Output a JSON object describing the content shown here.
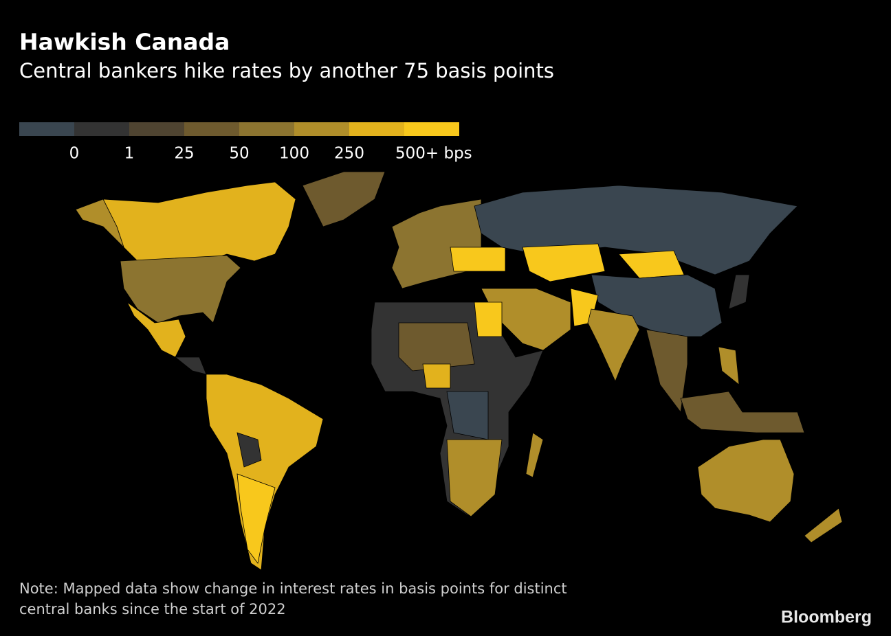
{
  "header": {
    "title": "Hawkish Canada",
    "subtitle": "Central bankers hike rates by another 75 basis points"
  },
  "legend": {
    "colors": [
      "#3a4650",
      "#333333",
      "#4f4431",
      "#6e5a2e",
      "#8c7430",
      "#b08e2a",
      "#e2b21d",
      "#f8c81c"
    ],
    "ticks": [
      0,
      1,
      25,
      50,
      100,
      250,
      {
        "value": 500,
        "label": "500+ bps"
      }
    ]
  },
  "note": [
    "Note: Mapped data show change in interest rates in basis points for distinct",
    "central banks since the start of 2022"
  ],
  "source": "Bloomberg"
}
